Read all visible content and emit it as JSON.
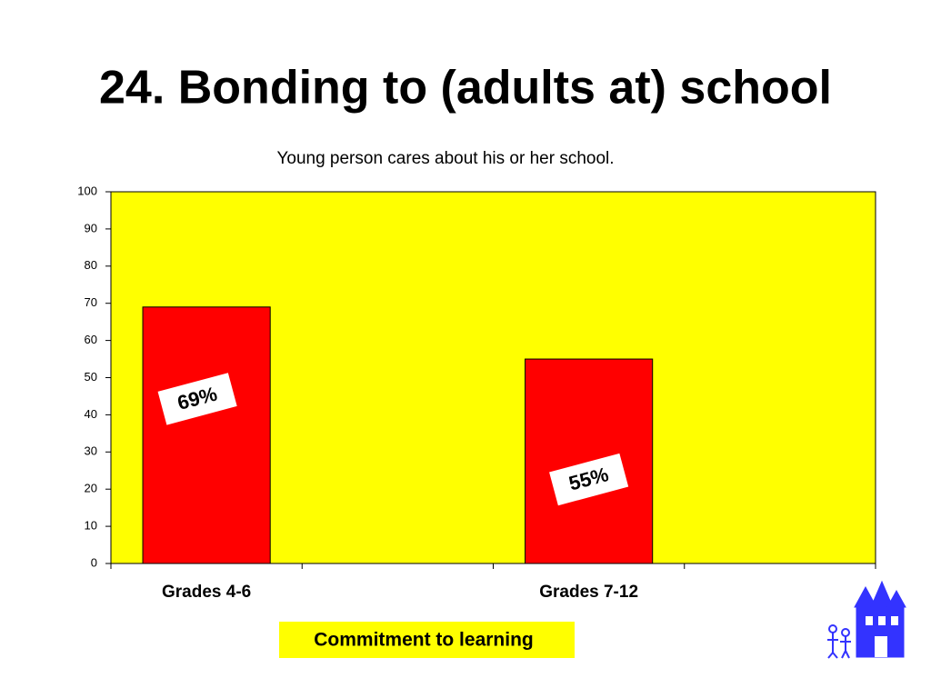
{
  "chart_data": {
    "type": "bar",
    "title": "24. Bonding to (adults at) school",
    "subtitle": "Young person cares about his or her school.",
    "categories": [
      "Grades 4-6",
      null,
      "Grades 7-12",
      null
    ],
    "values": [
      69,
      null,
      55,
      null
    ],
    "value_labels": [
      "69%",
      null,
      "55%",
      null
    ],
    "color": "#ff0000",
    "background": "#ffff00",
    "ylim": [
      0,
      100
    ],
    "yticks": [
      0,
      10,
      20,
      30,
      40,
      50,
      60,
      70,
      80,
      90,
      100
    ],
    "grid": false,
    "footer": "Commitment to learning"
  }
}
